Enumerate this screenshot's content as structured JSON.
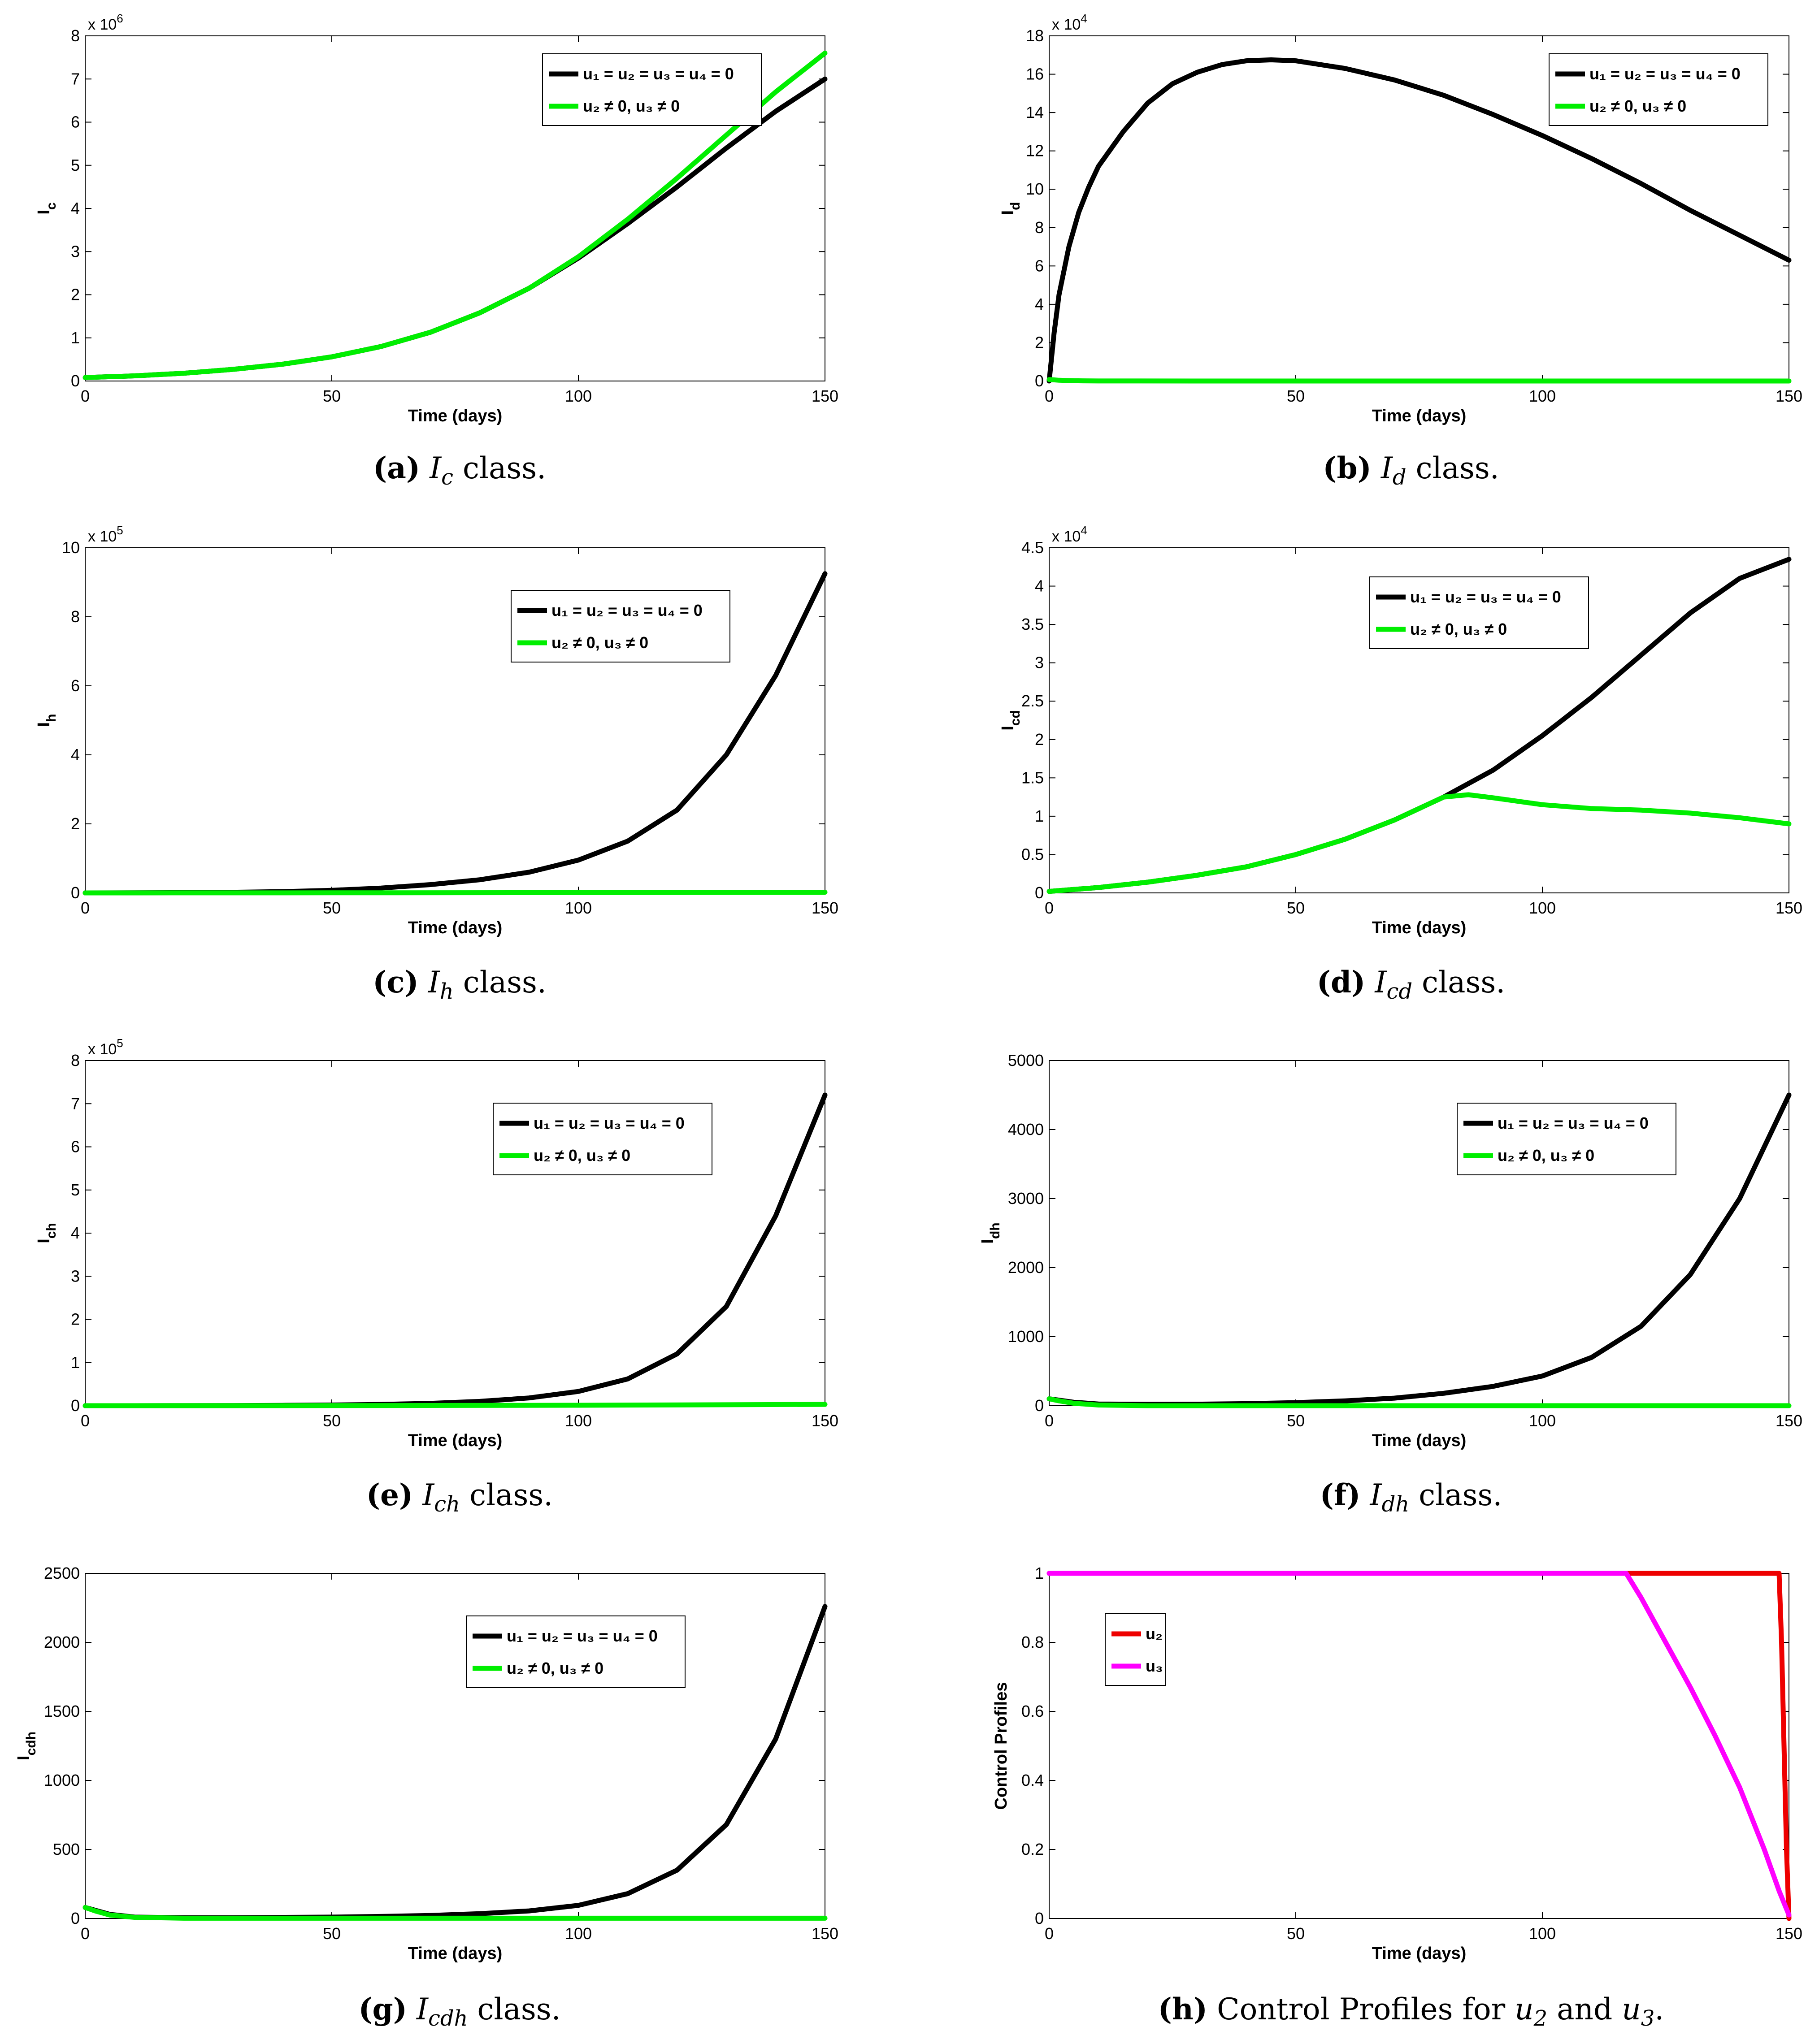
{
  "figure": {
    "time_label": "Time (days)",
    "legend_no_control": "u₁ = u₂ = u₃ = u₄ = 0",
    "legend_control": "u₂ ≠ 0, u₃ ≠ 0",
    "colors": {
      "no_control": "#000000",
      "control": "#00ee00",
      "u2": "#ee0000",
      "u3": "#ff00ff"
    }
  },
  "chart_data": [
    {
      "type": "line",
      "panel": "a",
      "caption": {
        "letter": "(a)",
        "symbol": "I",
        "sub": "c",
        "rest": " class."
      },
      "ylabel": "I",
      "ylabel_sub": "c",
      "xlabel": "Time (days)",
      "xlim": [
        0,
        150
      ],
      "ylim": [
        0,
        8000000
      ],
      "xticks": [
        0,
        50,
        100,
        150
      ],
      "yticks": [
        0,
        1000000,
        2000000,
        3000000,
        4000000,
        5000000,
        6000000,
        7000000,
        8000000
      ],
      "ytick_labels": [
        "0",
        "1",
        "2",
        "3",
        "4",
        "5",
        "6",
        "7",
        "8"
      ],
      "exponent_label": "x 10",
      "exponent": "6",
      "legend_position": "top-right",
      "series": [
        {
          "name": "u₁ = u₂ = u₃ = u₄ = 0",
          "color": "#000000",
          "x": [
            0,
            10,
            20,
            30,
            40,
            50,
            60,
            70,
            80,
            90,
            100,
            110,
            120,
            130,
            140,
            150
          ],
          "y": [
            80000,
            120000,
            180000,
            270000,
            390000,
            560000,
            800000,
            1130000,
            1580000,
            2150000,
            2850000,
            3650000,
            4500000,
            5400000,
            6250000,
            7000000
          ]
        },
        {
          "name": "u₂ ≠ 0, u₃ ≠ 0",
          "color": "#00ee00",
          "x": [
            0,
            10,
            20,
            30,
            40,
            50,
            60,
            70,
            80,
            90,
            100,
            110,
            120,
            130,
            140,
            150
          ],
          "y": [
            80000,
            120000,
            180000,
            270000,
            390000,
            560000,
            800000,
            1130000,
            1580000,
            2150000,
            2880000,
            3750000,
            4700000,
            5700000,
            6700000,
            7600000
          ]
        }
      ]
    },
    {
      "type": "line",
      "panel": "b",
      "caption": {
        "letter": "(b)",
        "symbol": "I",
        "sub": "d",
        "rest": " class."
      },
      "ylabel": "I",
      "ylabel_sub": "d",
      "xlabel": "Time (days)",
      "xlim": [
        0,
        150
      ],
      "ylim": [
        0,
        180000
      ],
      "xticks": [
        0,
        50,
        100,
        150
      ],
      "yticks": [
        0,
        20000,
        40000,
        60000,
        80000,
        100000,
        120000,
        140000,
        160000,
        180000
      ],
      "ytick_labels": [
        "0",
        "2",
        "4",
        "6",
        "8",
        "10",
        "12",
        "14",
        "16",
        "18"
      ],
      "exponent_label": "x 10",
      "exponent": "4",
      "legend_position": "top-right",
      "series": [
        {
          "name": "u₁ = u₂ = u₃ = u₄ = 0",
          "color": "#000000",
          "x": [
            0,
            1,
            2,
            4,
            6,
            8,
            10,
            15,
            20,
            25,
            30,
            35,
            40,
            45,
            50,
            60,
            70,
            80,
            90,
            100,
            110,
            120,
            130,
            140,
            150
          ],
          "y": [
            0,
            25000,
            45000,
            70000,
            88000,
            101000,
            112000,
            130000,
            145000,
            155000,
            161000,
            165000,
            167000,
            167500,
            167000,
            163000,
            157000,
            149000,
            139000,
            128000,
            116000,
            103000,
            89000,
            76000,
            63000
          ]
        },
        {
          "name": "u₂ ≠ 0, u₃ ≠ 0",
          "color": "#00ee00",
          "x": [
            0,
            2,
            5,
            10,
            50,
            100,
            150
          ],
          "y": [
            800,
            400,
            150,
            30,
            0,
            0,
            0
          ]
        }
      ]
    },
    {
      "type": "line",
      "panel": "c",
      "caption": {
        "letter": "(c)",
        "symbol": "I",
        "sub": "h",
        "rest": " class."
      },
      "ylabel": "I",
      "ylabel_sub": "h",
      "xlabel": "Time (days)",
      "xlim": [
        0,
        150
      ],
      "ylim": [
        0,
        1000000
      ],
      "xticks": [
        0,
        50,
        100,
        150
      ],
      "yticks": [
        0,
        200000,
        400000,
        600000,
        800000,
        1000000
      ],
      "ytick_labels": [
        "0",
        "2",
        "4",
        "6",
        "8",
        "10"
      ],
      "exponent_label": "x 10",
      "exponent": "5",
      "legend_position": "top-right",
      "series": [
        {
          "name": "u₁ = u₂ = u₃ = u₄ = 0",
          "color": "#000000",
          "x": [
            0,
            10,
            20,
            30,
            40,
            50,
            60,
            70,
            80,
            90,
            100,
            110,
            120,
            130,
            140,
            150
          ],
          "y": [
            0,
            300,
            800,
            1800,
            3800,
            7500,
            14000,
            24000,
            38000,
            60000,
            95000,
            150000,
            240000,
            400000,
            630000,
            925000
          ]
        },
        {
          "name": "u₂ ≠ 0, u₃ ≠ 0",
          "color": "#00ee00",
          "x": [
            0,
            50,
            100,
            150
          ],
          "y": [
            0,
            200,
            800,
            2000
          ]
        }
      ]
    },
    {
      "type": "line",
      "panel": "d",
      "caption": {
        "letter": "(d)",
        "symbol": "I",
        "sub": "cd",
        "rest": " class."
      },
      "ylabel": "I",
      "ylabel_sub": "cd",
      "xlabel": "Time (days)",
      "xlim": [
        0,
        150
      ],
      "ylim": [
        0,
        45000
      ],
      "xticks": [
        0,
        50,
        100,
        150
      ],
      "yticks": [
        0,
        5000,
        10000,
        15000,
        20000,
        25000,
        30000,
        35000,
        40000,
        45000
      ],
      "ytick_labels": [
        "0",
        "0.5",
        "1",
        "1.5",
        "2",
        "2.5",
        "3",
        "3.5",
        "4",
        "4.5"
      ],
      "exponent_label": "x 10",
      "exponent": "4",
      "legend_position": "top-right",
      "series": [
        {
          "name": "u₁ = u₂ = u₃ = u₄ = 0",
          "color": "#000000",
          "x": [
            0,
            10,
            20,
            30,
            40,
            50,
            60,
            70,
            80,
            90,
            100,
            110,
            120,
            130,
            140,
            150
          ],
          "y": [
            200,
            700,
            1400,
            2300,
            3400,
            5000,
            7000,
            9500,
            12500,
            16000,
            20500,
            25500,
            31000,
            36500,
            41000,
            43500
          ]
        },
        {
          "name": "u₂ ≠ 0, u₃ ≠ 0",
          "color": "#00ee00",
          "x": [
            0,
            10,
            20,
            30,
            40,
            50,
            60,
            70,
            80,
            85,
            90,
            100,
            110,
            120,
            130,
            140,
            150
          ],
          "y": [
            200,
            700,
            1400,
            2300,
            3400,
            5000,
            7000,
            9500,
            12500,
            12800,
            12400,
            11500,
            11000,
            10800,
            10400,
            9800,
            9000
          ]
        }
      ]
    },
    {
      "type": "line",
      "panel": "e",
      "caption": {
        "letter": "(e)",
        "symbol": "I",
        "sub": "ch",
        "rest": " class."
      },
      "ylabel": "I",
      "ylabel_sub": "ch",
      "xlabel": "Time (days)",
      "xlim": [
        0,
        150
      ],
      "ylim": [
        0,
        800000
      ],
      "xticks": [
        0,
        50,
        100,
        150
      ],
      "yticks": [
        0,
        100000,
        200000,
        300000,
        400000,
        500000,
        600000,
        700000,
        800000
      ],
      "ytick_labels": [
        "0",
        "1",
        "2",
        "3",
        "4",
        "5",
        "6",
        "7",
        "8"
      ],
      "exponent_label": "x 10",
      "exponent": "5",
      "legend_position": "top-right",
      "series": [
        {
          "name": "u₁ = u₂ = u₃ = u₄ = 0",
          "color": "#000000",
          "x": [
            0,
            10,
            20,
            30,
            40,
            50,
            60,
            70,
            80,
            90,
            100,
            110,
            120,
            130,
            140,
            150
          ],
          "y": [
            0,
            50,
            150,
            350,
            800,
            1600,
            3000,
            5500,
            10000,
            18000,
            33000,
            62000,
            120000,
            230000,
            440000,
            720000
          ]
        },
        {
          "name": "u₂ ≠ 0, u₃ ≠ 0",
          "color": "#00ee00",
          "x": [
            0,
            50,
            100,
            150
          ],
          "y": [
            0,
            200,
            1000,
            3000
          ]
        }
      ]
    },
    {
      "type": "line",
      "panel": "f",
      "caption": {
        "letter": "(f)",
        "symbol": "I",
        "sub": "dh",
        "rest": " class."
      },
      "ylabel": "I",
      "ylabel_sub": "dh",
      "xlabel": "Time (days)",
      "xlim": [
        0,
        150
      ],
      "ylim": [
        0,
        5000
      ],
      "xticks": [
        0,
        50,
        100,
        150
      ],
      "yticks": [
        0,
        1000,
        2000,
        3000,
        4000,
        5000
      ],
      "ytick_labels": [
        "0",
        "1000",
        "2000",
        "3000",
        "4000",
        "5000"
      ],
      "exponent_label": "",
      "exponent": "",
      "legend_position": "top-right",
      "series": [
        {
          "name": "u₁ = u₂ = u₃ = u₄ = 0",
          "color": "#000000",
          "x": [
            0,
            5,
            10,
            20,
            30,
            40,
            50,
            60,
            70,
            80,
            90,
            100,
            110,
            120,
            130,
            140,
            150
          ],
          "y": [
            100,
            50,
            25,
            20,
            22,
            30,
            45,
            70,
            110,
            180,
            280,
            430,
            700,
            1150,
            1900,
            3000,
            4500
          ]
        },
        {
          "name": "u₂ ≠ 0, u₃ ≠ 0",
          "color": "#00ee00",
          "x": [
            0,
            2,
            5,
            10,
            20,
            150
          ],
          "y": [
            100,
            70,
            35,
            10,
            0,
            0
          ]
        }
      ]
    },
    {
      "type": "line",
      "panel": "g",
      "caption": {
        "letter": "(g)",
        "symbol": "I",
        "sub": "cdh",
        "rest": " class."
      },
      "ylabel": "I",
      "ylabel_sub": "cdh",
      "xlabel": "Time (days)",
      "xlim": [
        0,
        150
      ],
      "ylim": [
        0,
        2500
      ],
      "xticks": [
        0,
        50,
        100,
        150
      ],
      "yticks": [
        0,
        500,
        1000,
        1500,
        2000,
        2500
      ],
      "ytick_labels": [
        "0",
        "500",
        "1000",
        "1500",
        "2000",
        "2500"
      ],
      "exponent_label": "",
      "exponent": "",
      "legend_position": "top-right",
      "series": [
        {
          "name": "u₁ = u₂ = u₃ = u₄ = 0",
          "color": "#000000",
          "x": [
            0,
            5,
            10,
            20,
            30,
            40,
            50,
            60,
            70,
            80,
            90,
            100,
            110,
            120,
            130,
            140,
            150
          ],
          "y": [
            80,
            30,
            10,
            6,
            6,
            8,
            10,
            15,
            22,
            35,
            55,
            95,
            180,
            350,
            680,
            1300,
            2260
          ]
        },
        {
          "name": "u₂ ≠ 0, u₃ ≠ 0",
          "color": "#00ee00",
          "x": [
            0,
            2,
            5,
            10,
            20,
            150
          ],
          "y": [
            80,
            55,
            25,
            8,
            2,
            2
          ]
        }
      ]
    },
    {
      "type": "line",
      "panel": "h",
      "caption": {
        "letter": "(h)",
        "text": " Control Profiles for ",
        "sym1": "u",
        "sub1": "2",
        "mid": " and ",
        "sym2": "u",
        "sub2": "3",
        "end": "."
      },
      "ylabel": "Control Profiles",
      "ylabel_sub": "",
      "xlabel": "Time (days)",
      "xlim": [
        0,
        150
      ],
      "ylim": [
        0,
        1
      ],
      "xticks": [
        0,
        50,
        100,
        150
      ],
      "yticks": [
        0,
        0.2,
        0.4,
        0.6,
        0.8,
        1
      ],
      "ytick_labels": [
        "0",
        "0.2",
        "0.4",
        "0.6",
        "0.8",
        "1"
      ],
      "exponent_label": "",
      "exponent": "",
      "legend_position": "top-left",
      "series": [
        {
          "name": "u₂",
          "color": "#ee0000",
          "x": [
            0,
            148,
            148.5,
            149,
            149.5,
            150
          ],
          "y": [
            1,
            1,
            0.8,
            0.5,
            0.2,
            0
          ]
        },
        {
          "name": "u₃",
          "color": "#ff00ff",
          "x": [
            0,
            117,
            120,
            125,
            130,
            135,
            140,
            145,
            148,
            150
          ],
          "y": [
            1,
            1,
            0.93,
            0.8,
            0.67,
            0.53,
            0.38,
            0.2,
            0.08,
            0.01
          ]
        }
      ]
    }
  ]
}
